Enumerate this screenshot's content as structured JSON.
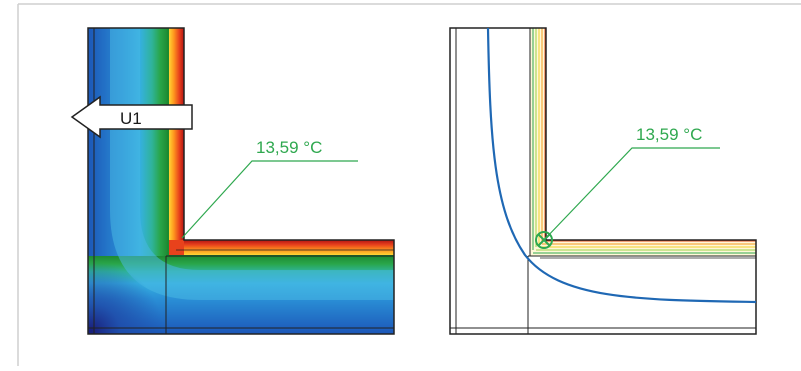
{
  "left_panel": {
    "arrow_label": "U1",
    "callout_text": "13,59 °C"
  },
  "right_panel": {
    "callout_text": "13,59 °C"
  },
  "colors": {
    "callout_green": "#2fa84f",
    "isotherm_blue": "#1f68b4",
    "outline": "#222222",
    "frame_border": "#cfcfcf"
  }
}
